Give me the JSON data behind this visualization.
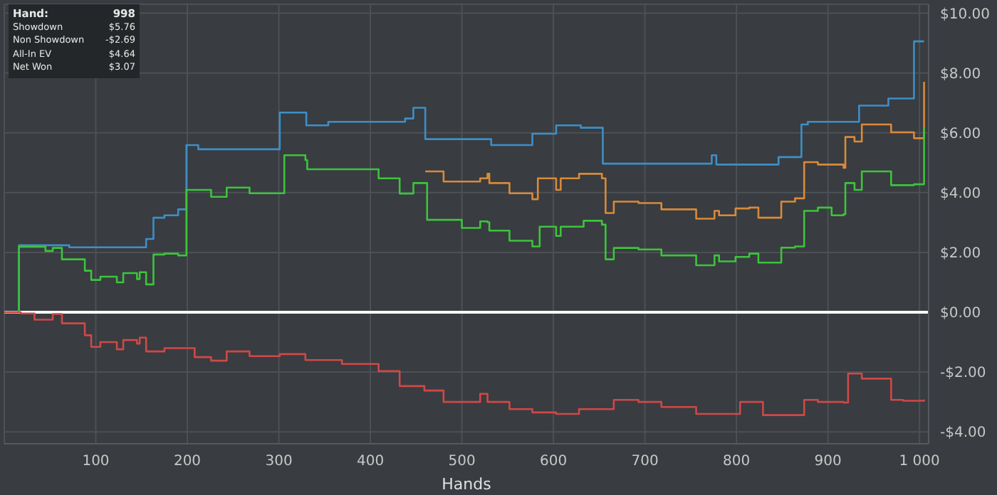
{
  "chart_data": {
    "type": "step",
    "xlabel": "Hands",
    "annotations": [
      "Hand: 998",
      "Showdown $5.76",
      "Non Showdown -$2.69",
      "All-In EV $4.64",
      "Net Won $3.07"
    ],
    "xlim": [
      0,
      1010
    ],
    "xticks": [
      100,
      200,
      300,
      400,
      500,
      600,
      700,
      800,
      900,
      {
        "value": 1000,
        "label": "1 000"
      }
    ],
    "ylim": [
      -4.4,
      10.3
    ],
    "yticks": [
      {
        "value": -4,
        "label": "-$4.00"
      },
      {
        "value": -2,
        "label": "-$2.00"
      },
      {
        "value": 0,
        "label": "$0.00"
      },
      {
        "value": 2,
        "label": "$2.00"
      },
      {
        "value": 4,
        "label": "$4.00"
      },
      {
        "value": 6,
        "label": "$6.00"
      },
      {
        "value": 8,
        "label": "$8.00"
      },
      {
        "value": 10,
        "label": "$10.00"
      }
    ],
    "grid": true,
    "ref_lines": [
      {
        "axis": "y",
        "value": 0,
        "color": "#ffffff"
      }
    ],
    "series": [
      {
        "color": "#3d8fc8",
        "x": [
          0,
          16,
          71,
          155,
          163,
          175,
          190,
          199,
          212,
          301,
          330,
          354,
          438,
          447,
          460,
          532,
          577,
          603,
          630,
          654,
          773,
          778,
          846,
          871,
          878,
          934,
          966,
          994,
          1005
        ],
        "values": [
          0,
          2.24,
          2.17,
          2.45,
          3.16,
          3.24,
          3.44,
          5.59,
          5.45,
          6.68,
          6.25,
          6.37,
          6.48,
          6.84,
          5.79,
          5.59,
          5.97,
          6.25,
          6.17,
          4.97,
          5.25,
          4.94,
          5.19,
          6.28,
          6.37,
          6.91,
          7.15,
          9.06,
          9.06
        ]
      },
      {
        "color": "#d98a3a",
        "x": [
          460,
          480,
          500,
          520,
          528,
          530,
          552,
          577,
          583,
          603,
          608,
          628,
          653,
          657,
          666,
          693,
          718,
          756,
          776,
          781,
          799,
          814,
          824,
          849,
          864,
          874,
          889,
          917,
          919,
          929,
          937,
          969,
          994,
          1005
        ],
        "values": [
          4.71,
          4.37,
          4.37,
          4.48,
          4.63,
          4.32,
          3.98,
          3.78,
          4.48,
          4.09,
          4.48,
          4.63,
          4.48,
          3.32,
          3.7,
          3.65,
          3.44,
          3.13,
          3.39,
          3.24,
          3.47,
          3.5,
          3.16,
          3.7,
          3.81,
          5.02,
          4.94,
          4.83,
          5.86,
          5.71,
          6.28,
          6.02,
          5.82,
          7.71
        ]
      },
      {
        "color": "#3cc43c",
        "x": [
          0,
          16,
          45,
          53,
          63,
          88,
          95,
          105,
          123,
          130,
          145,
          148,
          155,
          163,
          175,
          190,
          199,
          226,
          243,
          268,
          306,
          329,
          331,
          356,
          409,
          432,
          447,
          459,
          462,
          500,
          520,
          528,
          530,
          552,
          577,
          585,
          603,
          608,
          633,
          653,
          657,
          666,
          693,
          718,
          756,
          776,
          781,
          799,
          814,
          824,
          849,
          864,
          874,
          889,
          904,
          917,
          919,
          929,
          937,
          969,
          994,
          1005
        ],
        "values": [
          0,
          2.19,
          2.05,
          2.15,
          1.77,
          1.39,
          1.08,
          1.19,
          1,
          1.31,
          1.11,
          1.34,
          0.93,
          1.93,
          1.96,
          1.9,
          4.09,
          3.86,
          4.17,
          3.98,
          5.25,
          5.09,
          4.78,
          4.78,
          4.48,
          3.97,
          4.32,
          4.32,
          3.09,
          2.82,
          3.04,
          3.01,
          2.73,
          2.39,
          2.2,
          2.86,
          2.55,
          2.86,
          3.06,
          2.93,
          1.77,
          2.15,
          2.1,
          1.9,
          1.57,
          1.9,
          1.7,
          1.85,
          1.96,
          1.66,
          2.16,
          2.2,
          3.39,
          3.5,
          3.24,
          3.28,
          4.32,
          4.09,
          4.71,
          4.25,
          4.28,
          6.17
        ]
      },
      {
        "color": "#d04848",
        "x": [
          0,
          18,
          33,
          53,
          63,
          88,
          95,
          105,
          123,
          130,
          145,
          148,
          155,
          175,
          208,
          226,
          243,
          268,
          301,
          329,
          369,
          409,
          432,
          459,
          480,
          520,
          528,
          552,
          577,
          603,
          628,
          666,
          693,
          718,
          756,
          804,
          829,
          874,
          889,
          917,
          922,
          937,
          969,
          982,
          1005
        ],
        "values": [
          0,
          -0.04,
          -0.25,
          -0.06,
          -0.37,
          -0.77,
          -1.16,
          -1,
          -1.24,
          -0.93,
          -1.05,
          -0.85,
          -1.31,
          -1.2,
          -1.5,
          -1.62,
          -1.31,
          -1.47,
          -1.4,
          -1.6,
          -1.73,
          -1.97,
          -2.47,
          -2.62,
          -3,
          -2.73,
          -3,
          -3.24,
          -3.35,
          -3.4,
          -3.24,
          -2.93,
          -3,
          -3.17,
          -3.4,
          -3,
          -3.44,
          -2.93,
          -3,
          -3.02,
          -2.05,
          -2.22,
          -2.93,
          -2.96,
          -2.92
        ]
      }
    ]
  }
}
